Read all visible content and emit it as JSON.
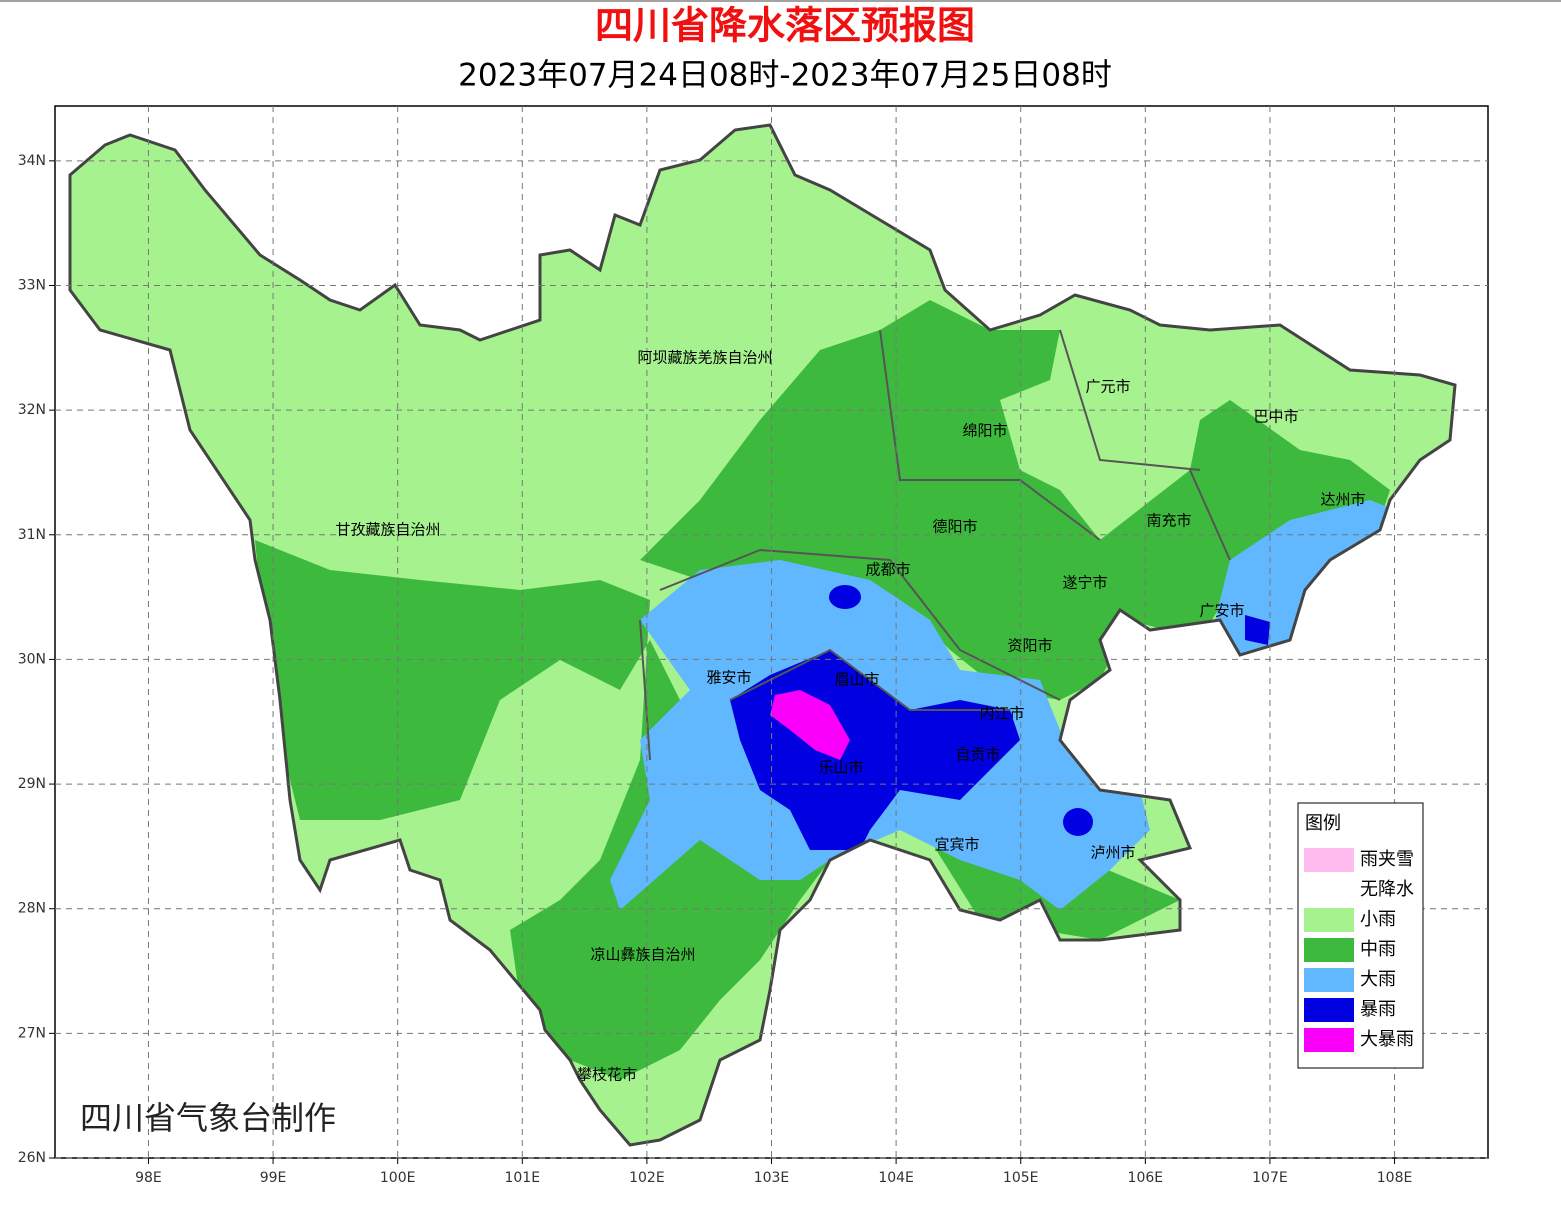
{
  "header": {
    "title": "四川省降水落区预报图",
    "subtitle": "2023年07月24日08时-2023年07月25日08时"
  },
  "map": {
    "xlim": [
      97.25,
      108.75
    ],
    "ylim": [
      26,
      34.44
    ],
    "grid": true,
    "lat_ticks": [
      {
        "value": 26,
        "label": "26N"
      },
      {
        "value": 27,
        "label": "27N"
      },
      {
        "value": 28,
        "label": "28N"
      },
      {
        "value": 29,
        "label": "29N"
      },
      {
        "value": 30,
        "label": "30N"
      },
      {
        "value": 31,
        "label": "31N"
      },
      {
        "value": 32,
        "label": "32N"
      },
      {
        "value": 33,
        "label": "33N"
      },
      {
        "value": 34,
        "label": "34N"
      }
    ],
    "lon_ticks": [
      {
        "value": 98,
        "label": "98E"
      },
      {
        "value": 99,
        "label": "99E"
      },
      {
        "value": 100,
        "label": "100E"
      },
      {
        "value": 101,
        "label": "101E"
      },
      {
        "value": 102,
        "label": "102E"
      },
      {
        "value": 103,
        "label": "103E"
      },
      {
        "value": 104,
        "label": "104E"
      },
      {
        "value": 105,
        "label": "105E"
      },
      {
        "value": 106,
        "label": "106E"
      },
      {
        "value": 107,
        "label": "107E"
      },
      {
        "value": 108,
        "label": "108E"
      }
    ],
    "cities": [
      "阿坝藏族羌族自治州",
      "甘孜藏族自治州",
      "凉山彝族自治州",
      "攀枝花市",
      "雅安市",
      "成都市",
      "眉山市",
      "乐山市",
      "绵阳市",
      "德阳市",
      "广元市",
      "巴中市",
      "达州市",
      "南充市",
      "遂宁市",
      "广安市",
      "资阳市",
      "内江市",
      "自贡市",
      "宜宾市",
      "泸州市"
    ],
    "legend": {
      "title": "图例",
      "items": [
        {
          "label": "雨夹雪",
          "color": "#ffbbee"
        },
        {
          "label": "无降水",
          "color": "#ffffff"
        },
        {
          "label": "小雨",
          "color": "#a6f28f"
        },
        {
          "label": "中雨",
          "color": "#3dba3d"
        },
        {
          "label": "大雨",
          "color": "#61b8ff"
        },
        {
          "label": "暴雨",
          "color": "#0000e1"
        },
        {
          "label": "大暴雨",
          "color": "#fa00fa"
        }
      ]
    }
  },
  "credit": "四川省气象台制作"
}
